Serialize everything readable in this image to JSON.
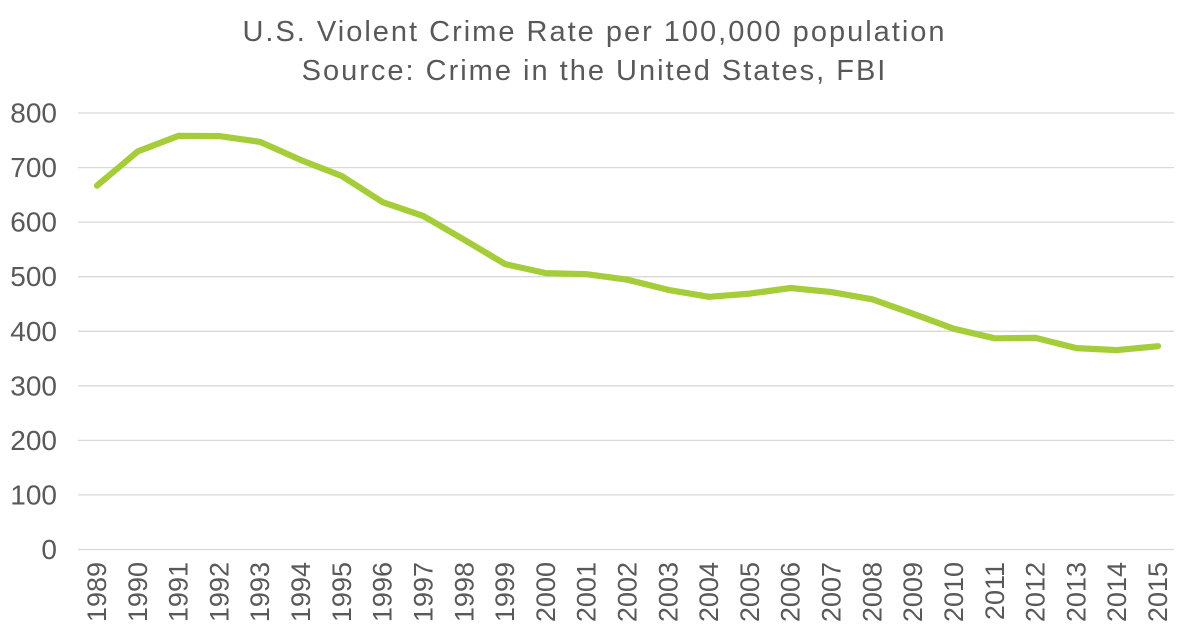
{
  "chart_data": {
    "type": "line",
    "title": "U.S. Violent Crime Rate per 100,000 population",
    "subtitle": "Source: Crime in the United States, FBI",
    "categories": [
      "1989",
      "1990",
      "1991",
      "1992",
      "1993",
      "1994",
      "1995",
      "1996",
      "1997",
      "1998",
      "1999",
      "2000",
      "2001",
      "2002",
      "2003",
      "2004",
      "2005",
      "2006",
      "2007",
      "2008",
      "2009",
      "2010",
      "2011",
      "2012",
      "2013",
      "2014",
      "2015"
    ],
    "series": [
      {
        "name": "Violent crime rate per 100,000 population",
        "values": [
          666.9,
          729.6,
          758.2,
          757.7,
          747.1,
          713.6,
          684.5,
          636.6,
          611.0,
          567.6,
          523.0,
          506.5,
          504.5,
          494.4,
          475.8,
          463.2,
          469.0,
          479.3,
          471.8,
          458.6,
          431.9,
          404.5,
          387.1,
          387.8,
          369.1,
          365.5,
          372.6
        ]
      }
    ],
    "xlabel": "",
    "ylabel": "",
    "ylim": [
      0,
      800
    ],
    "ytick_step": 100,
    "yticks": [
      "0",
      "100",
      "200",
      "300",
      "400",
      "500",
      "600",
      "700",
      "800"
    ],
    "grid": true,
    "legend": false,
    "colors": {
      "line": "#a4cd39",
      "gridline": "#d9d9d9",
      "text": "#595959",
      "background": "#ffffff"
    }
  }
}
